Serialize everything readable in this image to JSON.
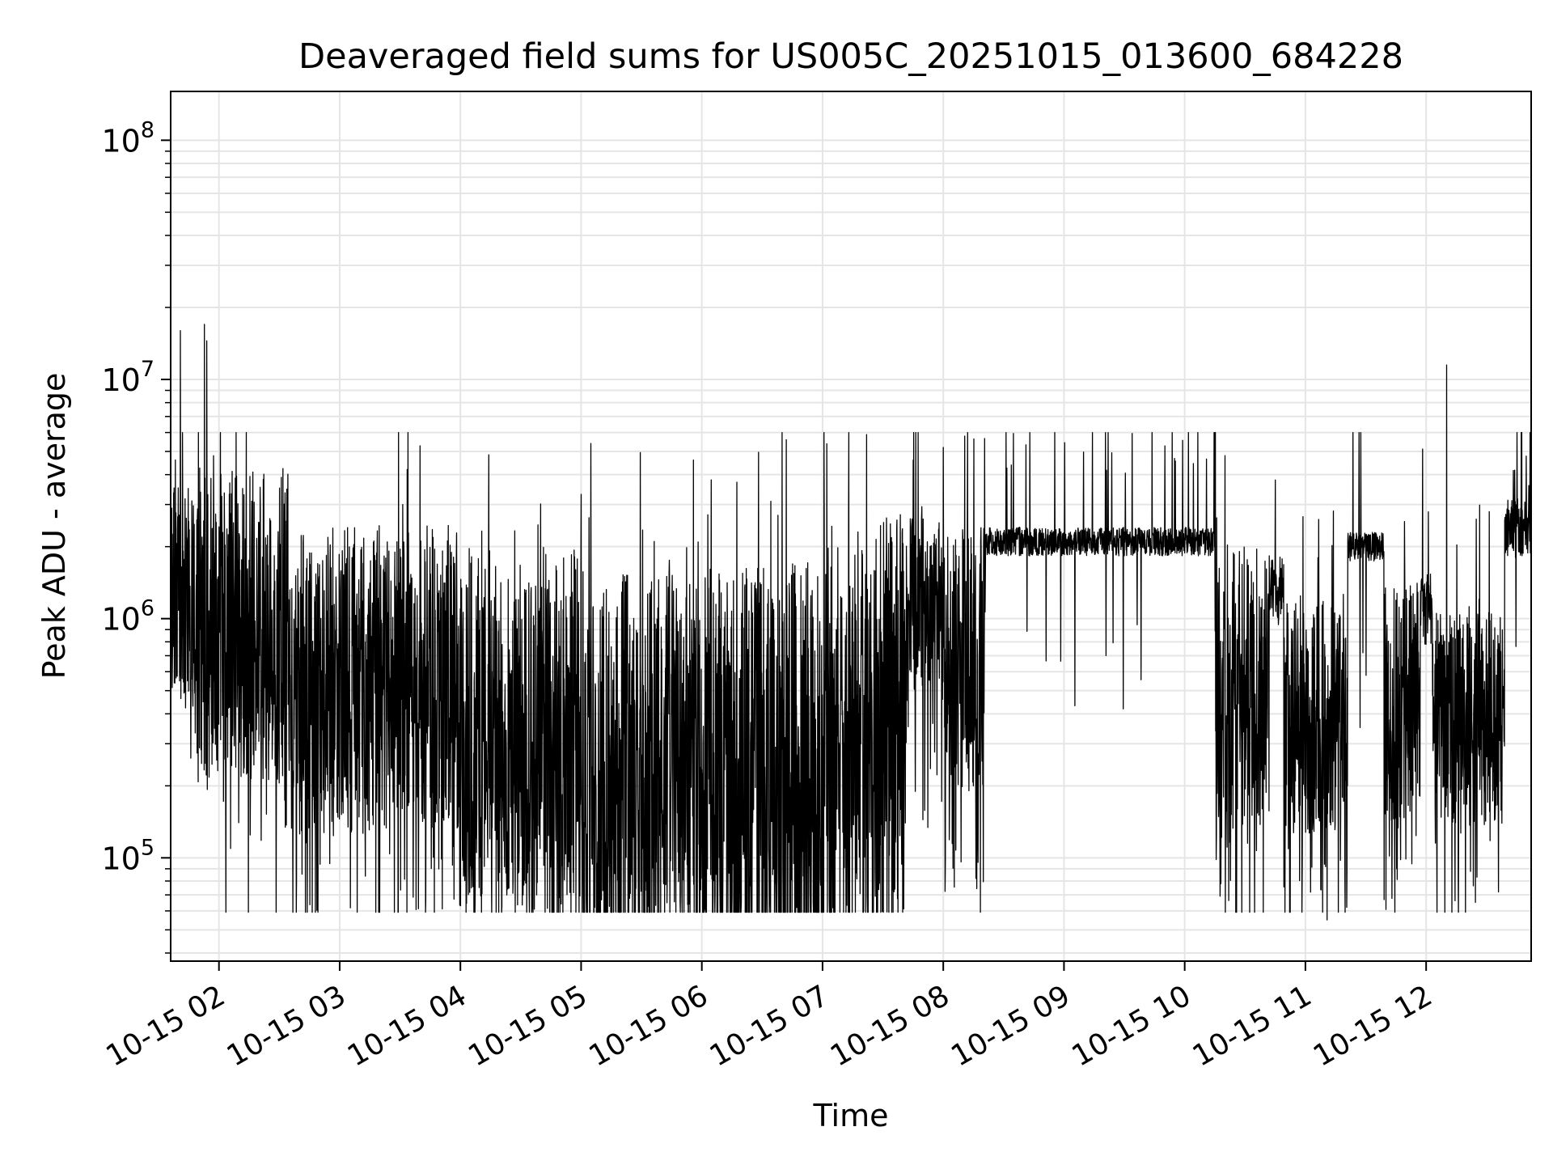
{
  "chart_data": {
    "type": "line",
    "title": "Deaveraged field sums for US005C_20251015_013600_684228",
    "xlabel": "Time",
    "ylabel": "Peak ADU - average",
    "yscale": "log",
    "ylim": [
      37000,
      160000000
    ],
    "y_ticks": [
      {
        "value": 100000,
        "base": "10",
        "exp": "5"
      },
      {
        "value": 1000000,
        "base": "10",
        "exp": "6"
      },
      {
        "value": 10000000,
        "base": "10",
        "exp": "7"
      },
      {
        "value": 100000000,
        "base": "10",
        "exp": "8"
      }
    ],
    "xlim_hours": [
      1.6,
      12.87
    ],
    "x_ticks": [
      {
        "hour": 2,
        "label": "10-15 02"
      },
      {
        "hour": 3,
        "label": "10-15 03"
      },
      {
        "hour": 4,
        "label": "10-15 04"
      },
      {
        "hour": 5,
        "label": "10-15 05"
      },
      {
        "hour": 6,
        "label": "10-15 06"
      },
      {
        "hour": 7,
        "label": "10-15 07"
      },
      {
        "hour": 8,
        "label": "10-15 08"
      },
      {
        "hour": 9,
        "label": "10-15 09"
      },
      {
        "hour": 10,
        "label": "10-15 10"
      },
      {
        "hour": 11,
        "label": "10-15 11"
      },
      {
        "hour": 12,
        "label": "10-15 12"
      }
    ],
    "grid": true,
    "line_color": "#000000",
    "grid_color": "#e5e5e5",
    "series": [
      {
        "name": "deaveraged field sum",
        "segments": [
          {
            "start": 1.6,
            "end": 1.85,
            "base": 1300000,
            "spread": 0.9,
            "down": 0.12,
            "up": 0.06
          },
          {
            "start": 1.85,
            "end": 2.6,
            "base": 900000,
            "spread": 1.3,
            "down": 0.16,
            "up": 0.04
          },
          {
            "start": 2.6,
            "end": 4.0,
            "base": 550000,
            "spread": 1.3,
            "down": 0.16,
            "up": 0.04
          },
          {
            "start": 4.0,
            "end": 5.0,
            "base": 350000,
            "spread": 1.5,
            "down": 0.15,
            "up": 0.05
          },
          {
            "start": 5.0,
            "end": 6.0,
            "base": 250000,
            "spread": 1.6,
            "down": 0.15,
            "up": 0.07
          },
          {
            "start": 6.0,
            "end": 7.0,
            "base": 200000,
            "spread": 1.9,
            "down": 0.12,
            "up": 0.09
          },
          {
            "start": 7.0,
            "end": 7.7,
            "base": 350000,
            "spread": 1.8,
            "down": 0.15,
            "up": 0.08
          },
          {
            "start": 7.7,
            "end": 8.0,
            "base": 1200000,
            "spread": 0.7,
            "down": 0.15,
            "up": 0.05
          },
          {
            "start": 8.0,
            "end": 8.35,
            "base": 700000,
            "spread": 1.1,
            "down": 0.18,
            "up": 0.05
          },
          {
            "start": 8.35,
            "end": 10.25,
            "base": 2100000,
            "spread": 0.12,
            "down": 0.01,
            "up": 0.03
          },
          {
            "start": 10.25,
            "end": 10.7,
            "base": 450000,
            "spread": 1.3,
            "down": 0.15,
            "up": 0.06
          },
          {
            "start": 10.7,
            "end": 10.82,
            "base": 1300000,
            "spread": 0.3,
            "down": 0.02,
            "up": 0.02
          },
          {
            "start": 10.82,
            "end": 11.35,
            "base": 400000,
            "spread": 1.0,
            "down": 0.12,
            "up": 0.04
          },
          {
            "start": 11.35,
            "end": 11.65,
            "base": 2000000,
            "spread": 0.12,
            "down": 0.01,
            "up": 0.03
          },
          {
            "start": 11.65,
            "end": 11.95,
            "base": 450000,
            "spread": 1.0,
            "down": 0.12,
            "up": 0.04
          },
          {
            "start": 11.95,
            "end": 12.05,
            "base": 1100000,
            "spread": 0.3,
            "down": 0.02,
            "up": 0.02
          },
          {
            "start": 12.05,
            "end": 12.65,
            "base": 380000,
            "spread": 0.9,
            "down": 0.12,
            "up": 0.04
          },
          {
            "start": 12.65,
            "end": 12.87,
            "base": 2400000,
            "spread": 0.25,
            "down": 0.02,
            "up": 0.04
          }
        ],
        "spikes": [
          {
            "hour": 1.68,
            "value": 16000000
          },
          {
            "hour": 1.88,
            "value": 17000000
          },
          {
            "hour": 1.9,
            "value": 14500000
          },
          {
            "hour": 1.83,
            "value": 6000000
          },
          {
            "hour": 2.28,
            "value": 4100000
          },
          {
            "hour": 5.08,
            "value": 5400000
          },
          {
            "hour": 5.93,
            "value": 4600000
          },
          {
            "hour": 6.7,
            "value": 5600000
          },
          {
            "hour": 7.75,
            "value": 4600000
          },
          {
            "hour": 8.0,
            "value": 5200000
          },
          {
            "hour": 10.75,
            "value": 3800000
          },
          {
            "hour": 12.17,
            "value": 11500000
          },
          {
            "hour": 12.85,
            "value": 3600000
          },
          {
            "hour": 11.18,
            "value": 55000
          },
          {
            "hour": 10.3,
            "value": 78000
          },
          {
            "hour": 12.6,
            "value": 72000
          },
          {
            "hour": 7.6,
            "value": 74000
          },
          {
            "hour": 6.15,
            "value": 80000
          }
        ]
      }
    ]
  }
}
